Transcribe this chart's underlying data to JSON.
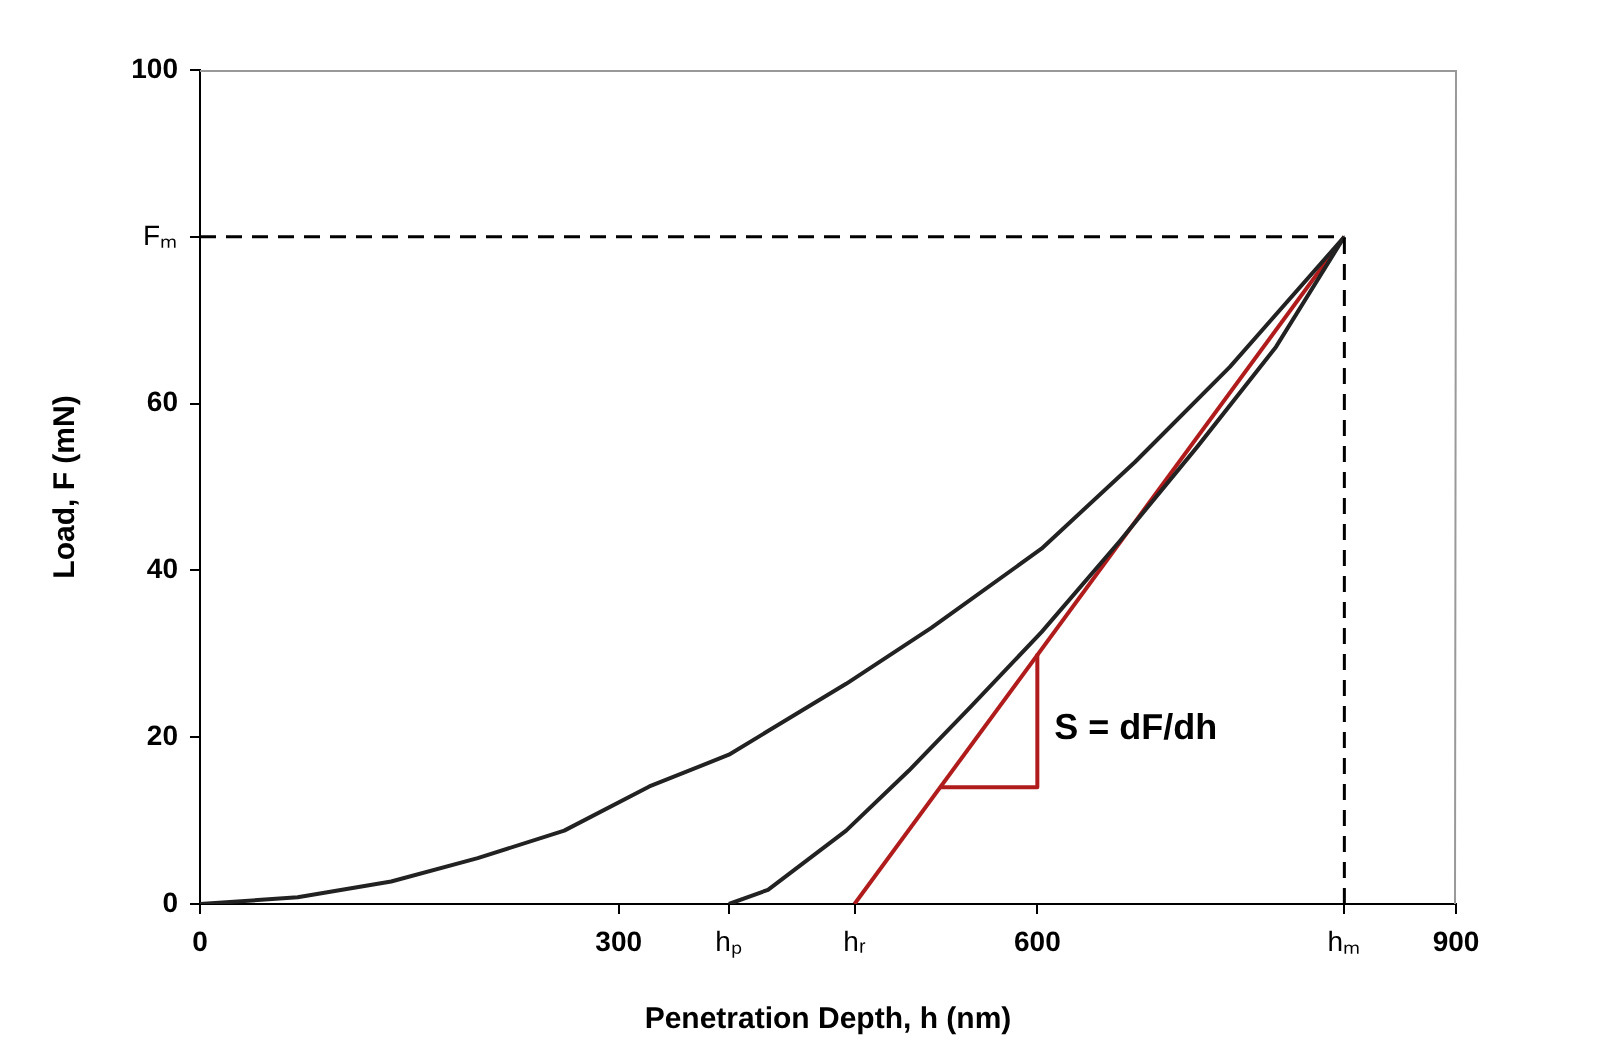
{
  "chart_data": {
    "type": "line",
    "xlabel": "Penetration Depth, h (nm)",
    "ylabel": "Load, F (mN)",
    "xlim": [
      0,
      900
    ],
    "xticks": [
      0,
      300,
      {
        "value": 379,
        "label": "hₚ"
      },
      {
        "value": 469,
        "label": "hᵣ"
      },
      600,
      {
        "value": 820,
        "label": "hₘ"
      },
      900
    ],
    "ylim": [
      0,
      100
    ],
    "yticks": [
      0,
      20,
      40,
      60,
      {
        "value": 80,
        "label": "Fₘ"
      },
      100
    ],
    "grid": false,
    "legend": false,
    "marker": "none",
    "line_style": "solid",
    "series": [
      {
        "color": "#222222",
        "x": [
          0,
          70,
          137,
          199,
          261,
          322,
          379,
          463,
          524,
          603,
          670,
          738,
          820
        ],
        "values": [
          0,
          0.8,
          2.7,
          5.5,
          8.8,
          14.1,
          17.9,
          26.4,
          33.1,
          42.6,
          53,
          64.4,
          80
        ]
      },
      {
        "color": "#222222",
        "x": [
          379,
          407,
          463,
          508,
          552,
          603,
          659,
          715,
          771,
          820
        ],
        "values": [
          0,
          1.7,
          8.8,
          16,
          23.6,
          32.6,
          43.5,
          54.9,
          66.8,
          80
        ]
      },
      {
        "color": "#b01c1c",
        "x": [
          469,
          820
        ],
        "values": [
          0,
          80
        ]
      },
      {
        "color": "#b01c1c",
        "x": [
          530,
          600,
          600
        ],
        "values": [
          14,
          14,
          30
        ]
      }
    ],
    "ref_lines": [
      {
        "axis": "y",
        "value": 80,
        "line_style": "dashed",
        "color": "#000000"
      },
      {
        "axis": "x",
        "value": 820,
        "line_style": "dashed",
        "color": "#000000"
      }
    ],
    "annotations": [
      "S = dF/dh"
    ]
  }
}
